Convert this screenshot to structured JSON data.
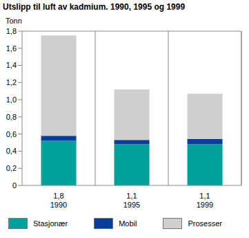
{
  "chart_data": {
    "type": "bar",
    "title": "Utslipp til luft av kadmium. 1990, 1995 og 1999",
    "y_label": "Tonn",
    "stacked": true,
    "grid": true,
    "categories": [
      "1990",
      "1995",
      "1999"
    ],
    "totals": [
      {
        "value": 1.8,
        "label": "1,8"
      },
      {
        "value": 1.1,
        "label": "1,1"
      },
      {
        "value": 1.1,
        "label": "1,1"
      }
    ],
    "series": [
      {
        "name": "Stasjonær",
        "color": "#00a19a",
        "values": [
          0.52,
          0.48,
          0.48
        ]
      },
      {
        "name": "Mobil",
        "color": "#0a3c9b",
        "values": [
          0.06,
          0.05,
          0.06
        ]
      },
      {
        "name": "Prosesser",
        "color": "#cfcfcf",
        "values": [
          1.17,
          0.59,
          0.53
        ]
      }
    ],
    "ylim": [
      0,
      1.8
    ],
    "yticks": [
      0,
      {
        "value": 0.2,
        "label": "0,2"
      },
      {
        "value": 0.4,
        "label": "0,4"
      },
      {
        "value": 0.6,
        "label": "0,6"
      },
      {
        "value": 0.8,
        "label": "0,8"
      },
      {
        "value": 1,
        "label": "1,0"
      },
      {
        "value": 1.2,
        "label": "1,2"
      },
      {
        "value": 1.4,
        "label": "1,4"
      },
      {
        "value": 1.6,
        "label": "1,6"
      },
      {
        "value": 1.8,
        "label": "1,8"
      }
    ],
    "legend": "bottom"
  }
}
